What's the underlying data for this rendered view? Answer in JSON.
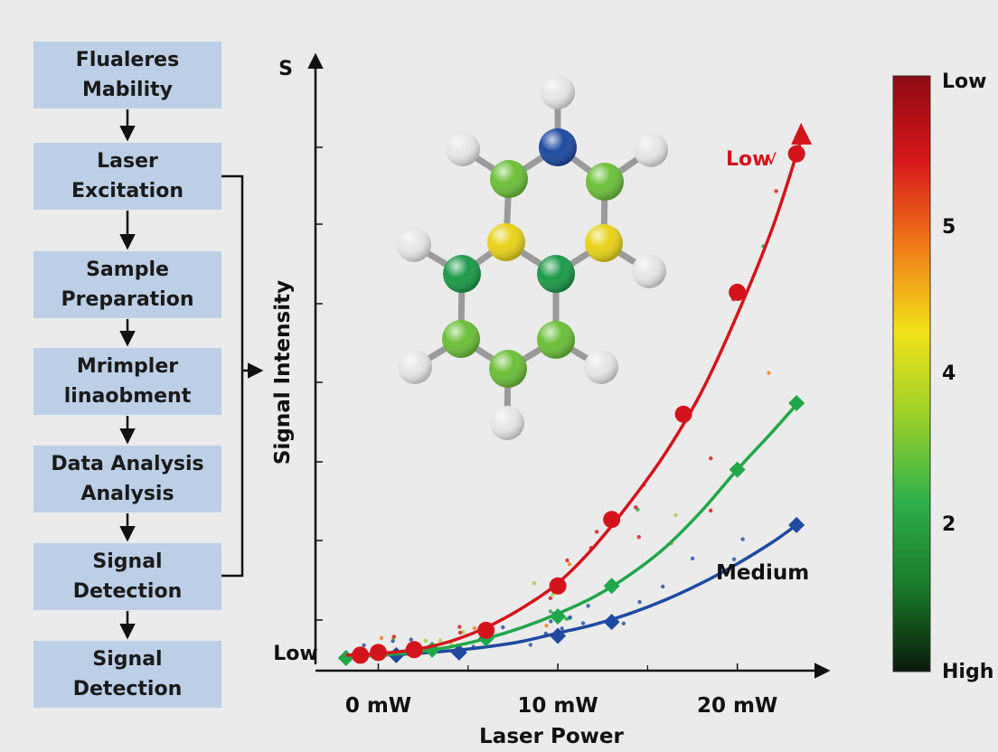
{
  "flowchart": {
    "steps": [
      "Flualereѕ\nMability",
      "Laser\nExcitation",
      "Sample\nPreparation",
      "Mrimpler\nlinaobment",
      "Data Analysis\nAnalysis",
      "Signal\nDetection",
      "Signal\nDetection"
    ]
  },
  "molecule": {
    "atoms": [
      {
        "id": "h-top",
        "color": "#e6e6e6"
      },
      {
        "id": "n-top",
        "color": "#1f4aa0"
      },
      {
        "id": "c-ul",
        "color": "#6cbf3a"
      },
      {
        "id": "c-ur",
        "color": "#6cbf3a"
      },
      {
        "id": "s-l",
        "color": "#e8d21a"
      },
      {
        "id": "s-r",
        "color": "#e8d21a"
      },
      {
        "id": "c-ml",
        "color": "#1e9a4a"
      },
      {
        "id": "c-mr",
        "color": "#1e9a4a"
      },
      {
        "id": "c-ll",
        "color": "#6cbf3a"
      },
      {
        "id": "c-lr",
        "color": "#6cbf3a"
      },
      {
        "id": "c-bot",
        "color": "#6cbf3a"
      }
    ]
  },
  "colorbar": {
    "labels": [
      "Low",
      "5",
      "4",
      "2",
      "High"
    ],
    "stops": [
      "#8e0a12",
      "#d6181a",
      "#f07a1a",
      "#f2e21a",
      "#9bd02a",
      "#2fb04a",
      "#1a7a2a",
      "#0a1a0a"
    ]
  },
  "chart_data": {
    "type": "line",
    "ylabel": "Signal Intensity",
    "xlabel": "Laser Power",
    "y_top_label": "S",
    "y_bottom_label": "Low",
    "x_tick_labels": [
      "0 mW",
      "10 mW",
      "20 mW"
    ],
    "x_tick_values": [
      0,
      10,
      20
    ],
    "xlim": [
      -3.5,
      24.5
    ],
    "ylim": [
      0,
      100
    ],
    "series": [
      {
        "name": "Low",
        "color": "#d4141c",
        "marker": "circle",
        "x": [
          -1,
          0,
          2,
          6,
          10,
          13,
          17,
          20,
          23.3
        ],
        "y": [
          0.5,
          1,
          1.5,
          5,
          13,
          25,
          44,
          66,
          91
        ],
        "curve_x": [
          -1.8,
          0,
          2,
          4,
          6,
          8,
          10,
          12,
          14,
          16,
          18,
          20,
          22,
          23.5
        ],
        "curve_y": [
          0.5,
          0.8,
          1.5,
          3,
          5.5,
          9,
          13.5,
          20,
          28,
          37,
          48,
          62,
          78,
          93
        ]
      },
      {
        "name": "",
        "color": "#22a64a",
        "marker": "diamond",
        "x": [
          -1.8,
          -1,
          3,
          6,
          10,
          13,
          20,
          23.3
        ],
        "y": [
          0,
          0.5,
          1.5,
          3.5,
          7.5,
          13,
          34,
          46
        ],
        "curve_x": [
          -1.8,
          0,
          2,
          4,
          6,
          8,
          10,
          12,
          14,
          16,
          18,
          20,
          22,
          23.5
        ],
        "curve_y": [
          0,
          0.5,
          1,
          2,
          3.5,
          5.5,
          8,
          11,
          15,
          20,
          26.5,
          34,
          41,
          46.5
        ]
      },
      {
        "name": "Medium",
        "color": "#1f4aa0",
        "marker": "diamond",
        "x": [
          -1,
          1,
          4.5,
          10,
          13,
          23.3
        ],
        "y": [
          0.5,
          0.5,
          1,
          4,
          6.5,
          24
        ],
        "curve_x": [
          -1.8,
          0,
          2,
          4,
          6,
          8,
          10,
          12,
          14,
          16,
          18,
          20,
          22,
          23.5
        ],
        "curve_y": [
          0.3,
          0.5,
          0.8,
          1.3,
          2,
          3,
          4.5,
          6,
          8,
          10.5,
          13.5,
          17,
          21,
          24.5
        ]
      }
    ]
  }
}
